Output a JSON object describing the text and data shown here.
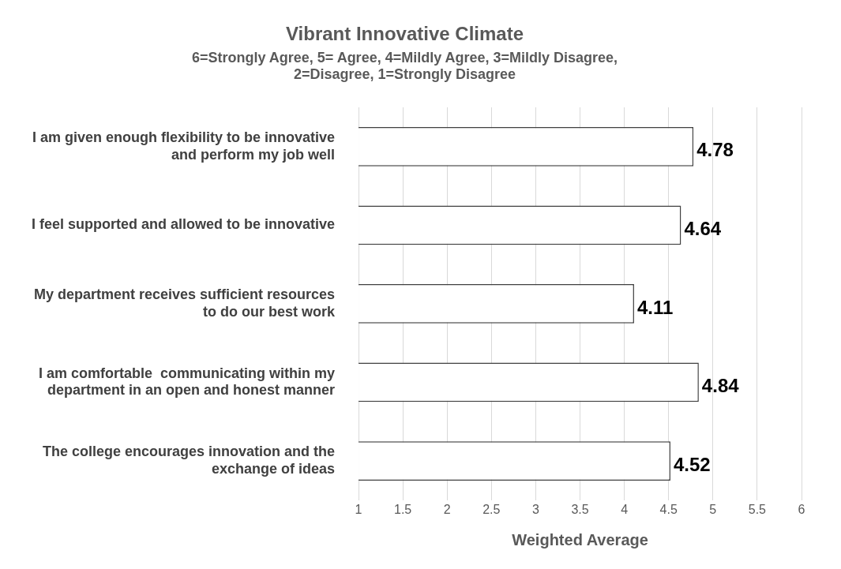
{
  "chart_data": {
    "type": "bar",
    "orientation": "horizontal",
    "title": "Vibrant Innovative Climate",
    "subtitle": "6=Strongly Agree, 5= Agree, 4=Mildly Agree, 3=Mildly Disagree, 2=Disagree, 1=Strongly Disagree",
    "xlabel": "Weighted Average",
    "categories": [
      "I am given enough flexibility to be innovative and perform my job well",
      "I feel supported and allowed to be innovative",
      "My department receives sufficient resources to do our best work",
      "I am comfortable  communicating within my department in an open and honest manner",
      "The college encourages innovation and the exchange of ideas"
    ],
    "values": [
      4.78,
      4.64,
      4.11,
      4.84,
      4.52
    ],
    "color": "#ffffff",
    "xlim": [
      1,
      6
    ],
    "xticks": [
      1,
      1.5,
      2,
      2.5,
      3,
      3.5,
      4,
      4.5,
      5,
      5.5,
      6
    ],
    "grid": "x",
    "data_labels": true,
    "legend": false
  }
}
